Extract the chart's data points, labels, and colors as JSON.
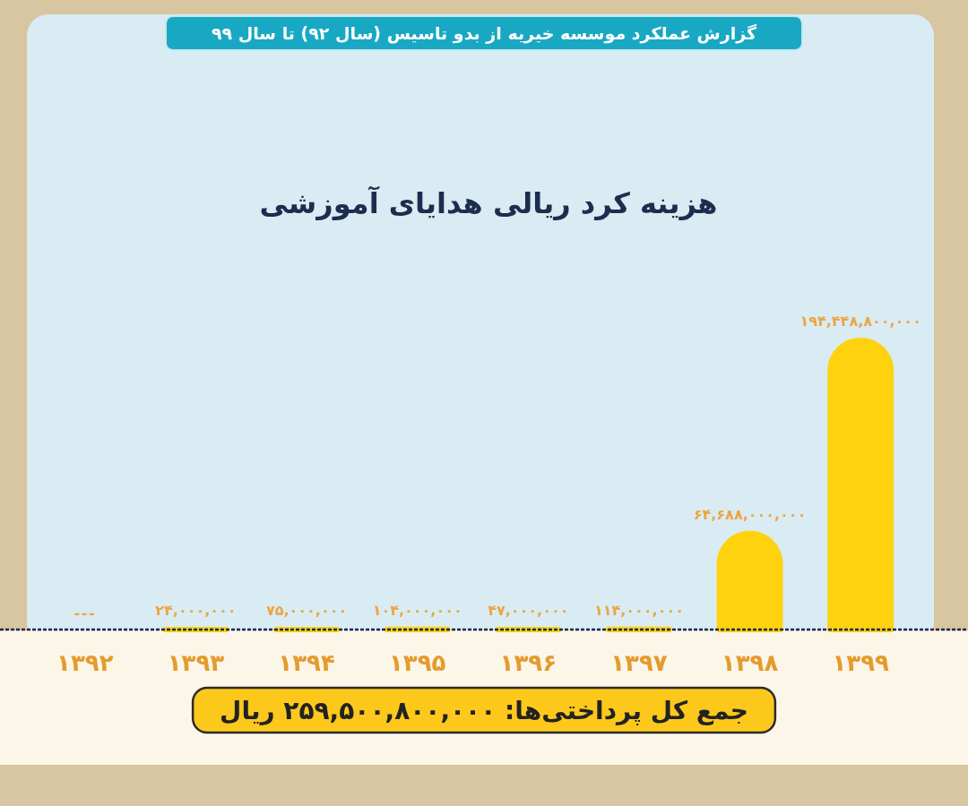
{
  "chart_data": {
    "type": "bar",
    "title": "هزینه کرد ریالی هدایای آموزشی",
    "subtitle": "گزارش عملکرد موسسه خیریه از بدو تاسیس (سال ۹۲) تا سال ۹۹",
    "categories": [
      "۱۳۹۲",
      "۱۳۹۳",
      "۱۳۹۴",
      "۱۳۹۵",
      "۱۳۹۶",
      "۱۳۹۷",
      "۱۳۹۸",
      "۱۳۹۹"
    ],
    "values": [
      null,
      24000000,
      75000000,
      104000000,
      47000000,
      114000000,
      64688000000,
      194448800000
    ],
    "value_labels": [
      "---",
      "۲۴,۰۰۰,۰۰۰",
      "۷۵,۰۰۰,۰۰۰",
      "۱۰۴,۰۰۰,۰۰۰",
      "۴۷,۰۰۰,۰۰۰",
      "۱۱۴,۰۰۰,۰۰۰",
      "۶۴,۶۸۸,۰۰۰,۰۰۰",
      "۱۹۴,۴۴۸,۸۰۰,۰۰۰"
    ],
    "color": "#ffd20f",
    "annotations": [
      "جمع کل پرداختی‌ها: ۲۵۹,۵۰۰,۸۰۰,۰۰۰ ریال"
    ]
  }
}
